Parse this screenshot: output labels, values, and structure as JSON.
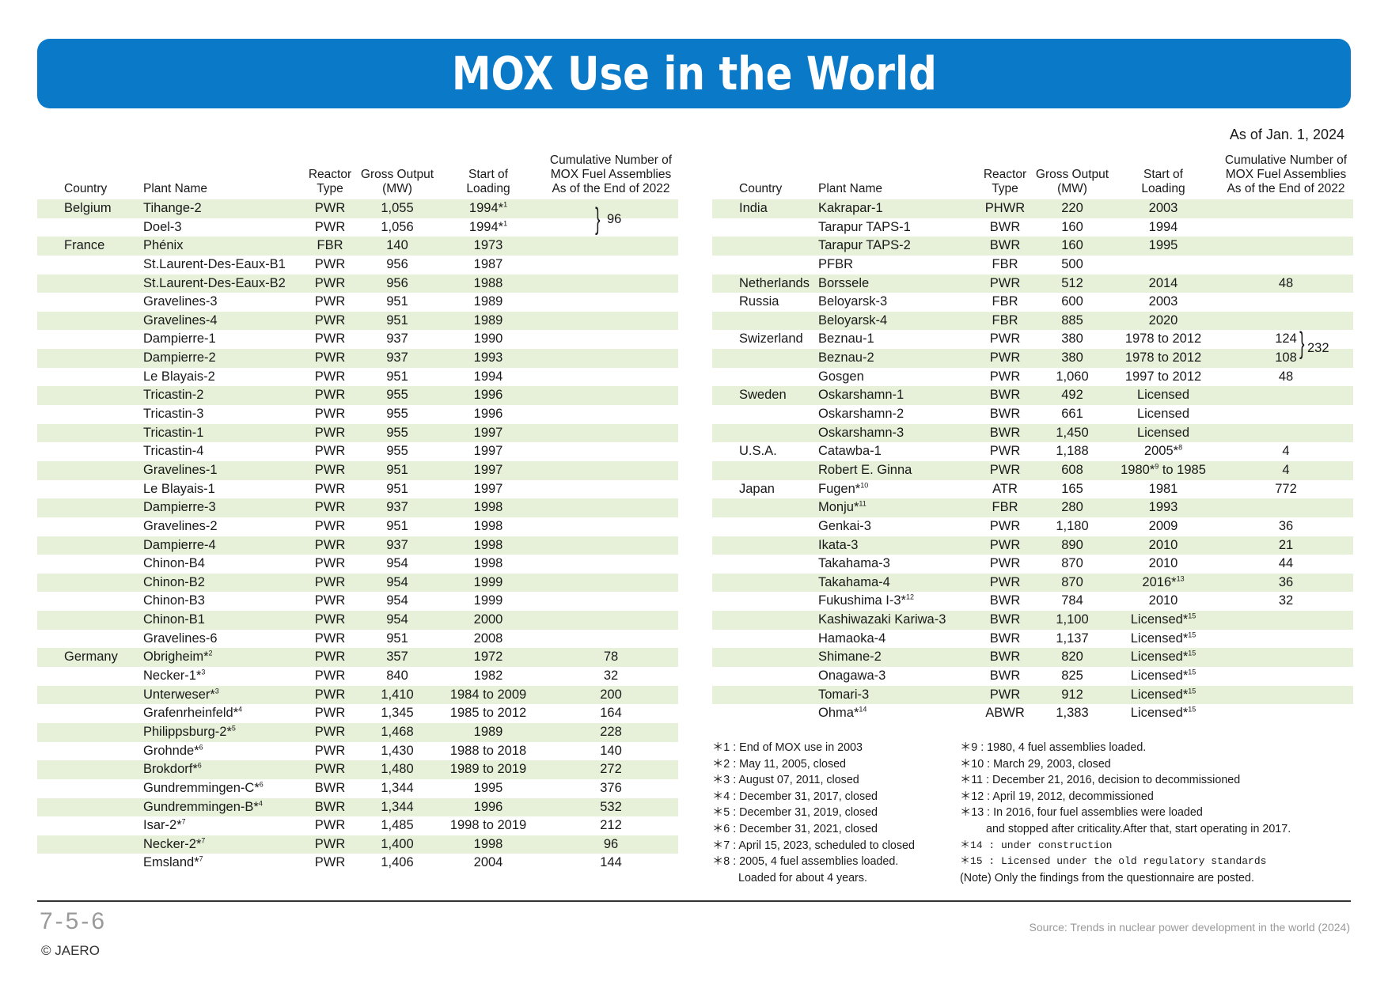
{
  "title": "MOX Use in the World",
  "as_of": "As of Jan. 1, 2024",
  "headers": {
    "country": "Country",
    "plant": "Plant Name",
    "type": [
      "Reactor",
      "Type"
    ],
    "output": [
      "Gross Output",
      "(MW)"
    ],
    "start": [
      "Start of",
      "Loading"
    ],
    "cum": [
      "Cumulative Number of",
      "MOX Fuel Assemblies",
      "As of the End of 2022"
    ]
  },
  "left_rows": [
    {
      "country": "Belgium",
      "plant": "Tihange-2",
      "type": "PWR",
      "output": "1,055",
      "start": "1994*1",
      "cum": ""
    },
    {
      "country": "",
      "plant": "Doel-3",
      "type": "PWR",
      "output": "1,056",
      "start": "1994*1",
      "cum": ""
    },
    {
      "country": "France",
      "plant": "Phénix",
      "type": "FBR",
      "output": "140",
      "start": "1973",
      "cum": ""
    },
    {
      "country": "",
      "plant": "St.Laurent-Des-Eaux-B1",
      "type": "PWR",
      "output": "956",
      "start": "1987",
      "cum": ""
    },
    {
      "country": "",
      "plant": "St.Laurent-Des-Eaux-B2",
      "type": "PWR",
      "output": "956",
      "start": "1988",
      "cum": ""
    },
    {
      "country": "",
      "plant": "Gravelines-3",
      "type": "PWR",
      "output": "951",
      "start": "1989",
      "cum": ""
    },
    {
      "country": "",
      "plant": "Gravelines-4",
      "type": "PWR",
      "output": "951",
      "start": "1989",
      "cum": ""
    },
    {
      "country": "",
      "plant": "Dampierre-1",
      "type": "PWR",
      "output": "937",
      "start": "1990",
      "cum": ""
    },
    {
      "country": "",
      "plant": "Dampierre-2",
      "type": "PWR",
      "output": "937",
      "start": "1993",
      "cum": ""
    },
    {
      "country": "",
      "plant": "Le Blayais-2",
      "type": "PWR",
      "output": "951",
      "start": "1994",
      "cum": ""
    },
    {
      "country": "",
      "plant": "Tricastin-2",
      "type": "PWR",
      "output": "955",
      "start": "1996",
      "cum": ""
    },
    {
      "country": "",
      "plant": "Tricastin-3",
      "type": "PWR",
      "output": "955",
      "start": "1996",
      "cum": ""
    },
    {
      "country": "",
      "plant": "Tricastin-1",
      "type": "PWR",
      "output": "955",
      "start": "1997",
      "cum": ""
    },
    {
      "country": "",
      "plant": "Tricastin-4",
      "type": "PWR",
      "output": "955",
      "start": "1997",
      "cum": ""
    },
    {
      "country": "",
      "plant": "Gravelines-1",
      "type": "PWR",
      "output": "951",
      "start": "1997",
      "cum": ""
    },
    {
      "country": "",
      "plant": "Le Blayais-1",
      "type": "PWR",
      "output": "951",
      "start": "1997",
      "cum": ""
    },
    {
      "country": "",
      "plant": "Dampierre-3",
      "type": "PWR",
      "output": "937",
      "start": "1998",
      "cum": ""
    },
    {
      "country": "",
      "plant": "Gravelines-2",
      "type": "PWR",
      "output": "951",
      "start": "1998",
      "cum": ""
    },
    {
      "country": "",
      "plant": "Dampierre-4",
      "type": "PWR",
      "output": "937",
      "start": "1998",
      "cum": ""
    },
    {
      "country": "",
      "plant": "Chinon-B4",
      "type": "PWR",
      "output": "954",
      "start": "1998",
      "cum": ""
    },
    {
      "country": "",
      "plant": "Chinon-B2",
      "type": "PWR",
      "output": "954",
      "start": "1999",
      "cum": ""
    },
    {
      "country": "",
      "plant": "Chinon-B3",
      "type": "PWR",
      "output": "954",
      "start": "1999",
      "cum": ""
    },
    {
      "country": "",
      "plant": "Chinon-B1",
      "type": "PWR",
      "output": "954",
      "start": "2000",
      "cum": ""
    },
    {
      "country": "",
      "plant": "Gravelines-6",
      "type": "PWR",
      "output": "951",
      "start": "2008",
      "cum": ""
    },
    {
      "country": "Germany",
      "plant": "Obrigheim*2",
      "type": "PWR",
      "output": "357",
      "start": "1972",
      "cum": "78"
    },
    {
      "country": "",
      "plant": "Necker-1*3",
      "type": "PWR",
      "output": "840",
      "start": "1982",
      "cum": "32"
    },
    {
      "country": "",
      "plant": "Unterweser*3",
      "type": "PWR",
      "output": "1,410",
      "start": "1984 to 2009",
      "cum": "200"
    },
    {
      "country": "",
      "plant": "Grafenrheinfeld*4",
      "type": "PWR",
      "output": "1,345",
      "start": "1985 to 2012",
      "cum": "164"
    },
    {
      "country": "",
      "plant": "Philippsburg-2*5",
      "type": "PWR",
      "output": "1,468",
      "start": "1989",
      "cum": "228"
    },
    {
      "country": "",
      "plant": "Grohnde*6",
      "type": "PWR",
      "output": "1,430",
      "start": "1988 to 2018",
      "cum": "140"
    },
    {
      "country": "",
      "plant": "Brokdorf*6",
      "type": "PWR",
      "output": "1,480",
      "start": "1989 to 2019",
      "cum": "272"
    },
    {
      "country": "",
      "plant": "Gundremmingen-C*6",
      "type": "BWR",
      "output": "1,344",
      "start": "1995",
      "cum": "376"
    },
    {
      "country": "",
      "plant": "Gundremmingen-B*4",
      "type": "BWR",
      "output": "1,344",
      "start": "1996",
      "cum": "532"
    },
    {
      "country": "",
      "plant": "Isar-2*7",
      "type": "PWR",
      "output": "1,485",
      "start": "1998 to 2019",
      "cum": "212"
    },
    {
      "country": "",
      "plant": "Necker-2*7",
      "type": "PWR",
      "output": "1,400",
      "start": "1998",
      "cum": "96"
    },
    {
      "country": "",
      "plant": "Emsland*7",
      "type": "PWR",
      "output": "1,406",
      "start": "2004",
      "cum": "144"
    }
  ],
  "left_brace_value": "96",
  "right_rows": [
    {
      "country": "India",
      "plant": "Kakrapar-1",
      "type": "PHWR",
      "output": "220",
      "start": "2003",
      "cum": ""
    },
    {
      "country": "",
      "plant": "Tarapur TAPS-1",
      "type": "BWR",
      "output": "160",
      "start": "1994",
      "cum": ""
    },
    {
      "country": "",
      "plant": "Tarapur TAPS-2",
      "type": "BWR",
      "output": "160",
      "start": "1995",
      "cum": ""
    },
    {
      "country": "",
      "plant": "PFBR",
      "type": "FBR",
      "output": "500",
      "start": "",
      "cum": ""
    },
    {
      "country": "Netherlands",
      "plant": "Borssele",
      "type": "PWR",
      "output": "512",
      "start": "2014",
      "cum": "48"
    },
    {
      "country": "Russia",
      "plant": "Beloyarsk-3",
      "type": "FBR",
      "output": "600",
      "start": "2003",
      "cum": ""
    },
    {
      "country": "",
      "plant": "Beloyarsk-4",
      "type": "FBR",
      "output": "885",
      "start": "2020",
      "cum": ""
    },
    {
      "country": "Swizerland",
      "plant": "Beznau-1",
      "type": "PWR",
      "output": "380",
      "start": "1978 to 2012",
      "cum": "124"
    },
    {
      "country": "",
      "plant": "Beznau-2",
      "type": "PWR",
      "output": "380",
      "start": "1978 to 2012",
      "cum": "108"
    },
    {
      "country": "",
      "plant": "Gosgen",
      "type": "PWR",
      "output": "1,060",
      "start": "1997 to 2012",
      "cum": "48"
    },
    {
      "country": "Sweden",
      "plant": "Oskarshamn-1",
      "type": "BWR",
      "output": "492",
      "start": "Licensed",
      "cum": ""
    },
    {
      "country": "",
      "plant": "Oskarshamn-2",
      "type": "BWR",
      "output": "661",
      "start": "Licensed",
      "cum": ""
    },
    {
      "country": "",
      "plant": "Oskarshamn-3",
      "type": "BWR",
      "output": "1,450",
      "start": "Licensed",
      "cum": ""
    },
    {
      "country": "U.S.A.",
      "plant": "Catawba-1",
      "type": "PWR",
      "output": "1,188",
      "start": "2005*8",
      "cum": "4"
    },
    {
      "country": "",
      "plant": "Robert E. Ginna",
      "type": "PWR",
      "output": "608",
      "start": "1980*9 to 1985",
      "cum": "4"
    },
    {
      "country": "Japan",
      "plant": "Fugen*10",
      "type": "ATR",
      "output": "165",
      "start": "1981",
      "cum": "772"
    },
    {
      "country": "",
      "plant": "Monju*11",
      "type": "FBR",
      "output": "280",
      "start": "1993",
      "cum": ""
    },
    {
      "country": "",
      "plant": "Genkai-3",
      "type": "PWR",
      "output": "1,180",
      "start": "2009",
      "cum": "36"
    },
    {
      "country": "",
      "plant": "Ikata-3",
      "type": "PWR",
      "output": "890",
      "start": "2010",
      "cum": "21"
    },
    {
      "country": "",
      "plant": "Takahama-3",
      "type": "PWR",
      "output": "870",
      "start": "2010",
      "cum": "44"
    },
    {
      "country": "",
      "plant": "Takahama-4",
      "type": "PWR",
      "output": "870",
      "start": "2016*13",
      "cum": "36"
    },
    {
      "country": "",
      "plant": "Fukushima I-3*12",
      "type": "BWR",
      "output": "784",
      "start": "2010",
      "cum": "32"
    },
    {
      "country": "",
      "plant": "Kashiwazaki Kariwa-3",
      "type": "BWR",
      "output": "1,100",
      "start": "Licensed*15",
      "cum": ""
    },
    {
      "country": "",
      "plant": "Hamaoka-4",
      "type": "BWR",
      "output": "1,137",
      "start": "Licensed*15",
      "cum": ""
    },
    {
      "country": "",
      "plant": "Shimane-2",
      "type": "BWR",
      "output": "820",
      "start": "Licensed*15",
      "cum": ""
    },
    {
      "country": "",
      "plant": "Onagawa-3",
      "type": "BWR",
      "output": "825",
      "start": "Licensed*15",
      "cum": ""
    },
    {
      "country": "",
      "plant": "Tomari-3",
      "type": "PWR",
      "output": "912",
      "start": "Licensed*15",
      "cum": ""
    },
    {
      "country": "",
      "plant": "Ohma*14",
      "type": "ABWR",
      "output": "1,383",
      "start": "Licensed*15",
      "cum": ""
    }
  ],
  "right_brace_value": "232",
  "notes_left": [
    "＊1 :  End of MOX use in 2003",
    "＊2 :  May 11, 2005, closed",
    "＊3 :  August 07, 2011, closed",
    "＊4 :  December 31, 2017, closed",
    "＊5 :  December 31, 2019, closed",
    "＊6 :  December 31, 2021, closed",
    "＊7 :  April 15, 2023, scheduled to closed",
    "＊8 :  2005, 4 fuel assemblies loaded.",
    "Loaded for about 4 years."
  ],
  "notes_right": [
    "＊9 :  1980, 4 fuel assemblies loaded.",
    "＊10 :  March 29, 2003, closed",
    "＊11 :  December 21, 2016, decision to decommissioned",
    "＊12 :  April 19, 2012, decommissioned",
    "＊13 :  In 2016, four fuel assemblies were loaded",
    "and stopped after criticality.After that, start operating in 2017.",
    "＊14 : under construction",
    "＊15 : Licensed under the old regulatory standards",
    "(Note) Only the findings from the questionnaire are posted."
  ],
  "page_number": "7-5-6",
  "copyright": "© JAERO",
  "source": "Source: Trends in nuclear power development in the world (2024)"
}
